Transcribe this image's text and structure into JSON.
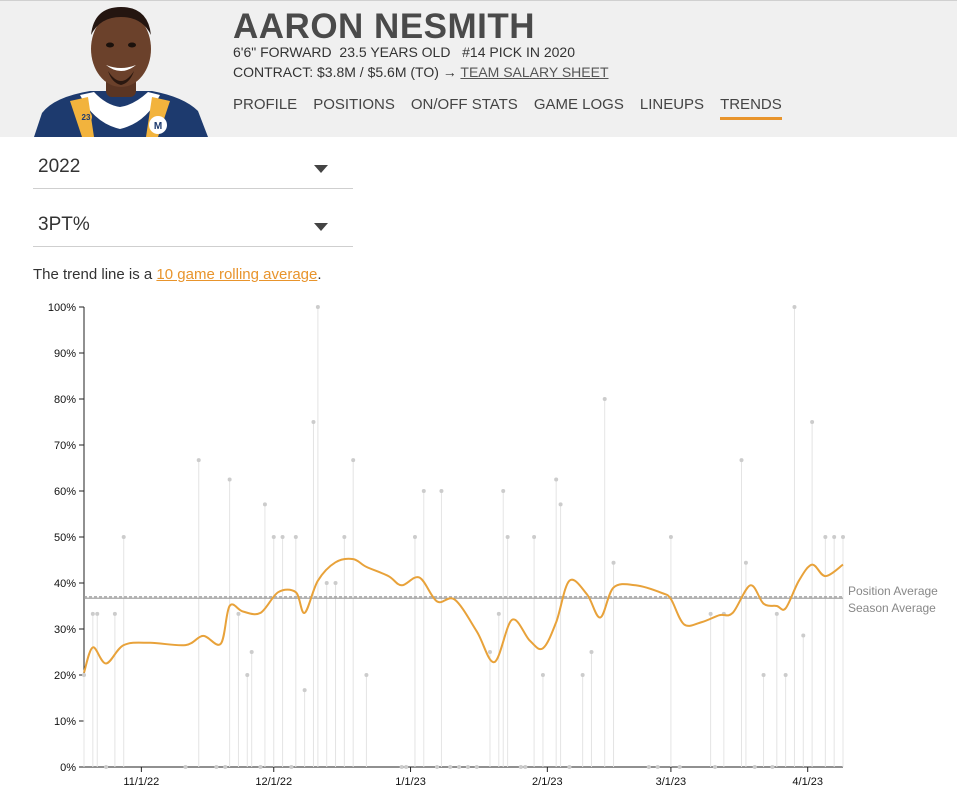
{
  "player": {
    "name": "AARON NESMITH",
    "bio": "6'6\" FORWARD  23.5 YEARS OLD   #14 PICK IN 2020",
    "contract_prefix": "CONTRACT: $3.8M / $5.6M (TO) → ",
    "contract_link": "TEAM SALARY SHEET",
    "jersey_number": "23"
  },
  "nav": {
    "items": [
      "PROFILE",
      "POSITIONS",
      "ON/OFF STATS",
      "GAME LOGS",
      "LINEUPS",
      "TRENDS"
    ],
    "active": "TRENDS"
  },
  "filters": {
    "season": "2022",
    "stat": "3PT%"
  },
  "note": {
    "prefix": "The trend line is a ",
    "link": "10 game rolling average",
    "suffix": "."
  },
  "colors": {
    "accent": "#e8942c",
    "trend": "#e8a23a",
    "points": "#cccccc",
    "reference": "#9a9a9a"
  },
  "chart_data": {
    "type": "line",
    "title": "",
    "xlabel": "",
    "ylabel": "",
    "ylim": [
      0,
      100
    ],
    "y_ticks": [
      "0%",
      "10%",
      "20%",
      "30%",
      "40%",
      "50%",
      "60%",
      "70%",
      "80%",
      "90%",
      "100%"
    ],
    "x_range": [
      "2022-10-19",
      "2023-04-09"
    ],
    "x_ticks": [
      {
        "date": "2022-11-01",
        "label": "11/1/22"
      },
      {
        "date": "2022-12-01",
        "label": "12/1/22"
      },
      {
        "date": "2023-01-01",
        "label": "1/1/23"
      },
      {
        "date": "2023-02-01",
        "label": "2/1/23"
      },
      {
        "date": "2023-03-01",
        "label": "3/1/23"
      },
      {
        "date": "2023-04-01",
        "label": "4/1/23"
      }
    ],
    "reference_lines": [
      {
        "name": "Position Average",
        "value": 37.0
      },
      {
        "name": "Season Average",
        "value": 36.7
      }
    ],
    "games": [
      {
        "date": "2022-10-19",
        "value": 20.0
      },
      {
        "date": "2022-10-21",
        "value": 33.3
      },
      {
        "date": "2022-10-22",
        "value": 33.3
      },
      {
        "date": "2022-10-24",
        "value": 0.0
      },
      {
        "date": "2022-10-26",
        "value": 33.3
      },
      {
        "date": "2022-10-28",
        "value": 50.0
      },
      {
        "date": "2022-11-11",
        "value": 0.0
      },
      {
        "date": "2022-11-14",
        "value": 66.7
      },
      {
        "date": "2022-11-18",
        "value": 0.0
      },
      {
        "date": "2022-11-20",
        "value": 0.0
      },
      {
        "date": "2022-11-21",
        "value": 62.5
      },
      {
        "date": "2022-11-23",
        "value": 33.3
      },
      {
        "date": "2022-11-25",
        "value": 20.0
      },
      {
        "date": "2022-11-26",
        "value": 25.0
      },
      {
        "date": "2022-11-28",
        "value": 0.0
      },
      {
        "date": "2022-11-29",
        "value": 57.1
      },
      {
        "date": "2022-12-01",
        "value": 50.0
      },
      {
        "date": "2022-12-03",
        "value": 50.0
      },
      {
        "date": "2022-12-05",
        "value": 0.0
      },
      {
        "date": "2022-12-06",
        "value": 50.0
      },
      {
        "date": "2022-12-08",
        "value": 16.7
      },
      {
        "date": "2022-12-10",
        "value": 75.0
      },
      {
        "date": "2022-12-11",
        "value": 100.0
      },
      {
        "date": "2022-12-13",
        "value": 40.0
      },
      {
        "date": "2022-12-15",
        "value": 40.0
      },
      {
        "date": "2022-12-17",
        "value": 50.0
      },
      {
        "date": "2022-12-19",
        "value": 66.7
      },
      {
        "date": "2022-12-22",
        "value": 20.0
      },
      {
        "date": "2022-12-30",
        "value": 0.0
      },
      {
        "date": "2022-12-31",
        "value": 0.0
      },
      {
        "date": "2023-01-02",
        "value": 50.0
      },
      {
        "date": "2023-01-04",
        "value": 60.0
      },
      {
        "date": "2023-01-07",
        "value": 0.0
      },
      {
        "date": "2023-01-08",
        "value": 60.0
      },
      {
        "date": "2023-01-10",
        "value": 0.0
      },
      {
        "date": "2023-01-12",
        "value": 0.0
      },
      {
        "date": "2023-01-14",
        "value": 0.0
      },
      {
        "date": "2023-01-16",
        "value": 0.0
      },
      {
        "date": "2023-01-19",
        "value": 25.0
      },
      {
        "date": "2023-01-21",
        "value": 33.3
      },
      {
        "date": "2023-01-22",
        "value": 60.0
      },
      {
        "date": "2023-01-23",
        "value": 50.0
      },
      {
        "date": "2023-01-26",
        "value": 0.0
      },
      {
        "date": "2023-01-27",
        "value": 0.0
      },
      {
        "date": "2023-01-29",
        "value": 50.0
      },
      {
        "date": "2023-01-31",
        "value": 20.0
      },
      {
        "date": "2023-02-03",
        "value": 62.5
      },
      {
        "date": "2023-02-04",
        "value": 57.1
      },
      {
        "date": "2023-02-06",
        "value": 0.0
      },
      {
        "date": "2023-02-09",
        "value": 20.0
      },
      {
        "date": "2023-02-11",
        "value": 25.0
      },
      {
        "date": "2023-02-14",
        "value": 80.0
      },
      {
        "date": "2023-02-16",
        "value": 44.4
      },
      {
        "date": "2023-02-24",
        "value": 0.0
      },
      {
        "date": "2023-02-26",
        "value": 0.0
      },
      {
        "date": "2023-03-01",
        "value": 50.0
      },
      {
        "date": "2023-03-03",
        "value": 0.0
      },
      {
        "date": "2023-03-10",
        "value": 33.3
      },
      {
        "date": "2023-03-11",
        "value": 0.0
      },
      {
        "date": "2023-03-13",
        "value": 33.3
      },
      {
        "date": "2023-03-17",
        "value": 66.7
      },
      {
        "date": "2023-03-18",
        "value": 44.4
      },
      {
        "date": "2023-03-20",
        "value": 0.0
      },
      {
        "date": "2023-03-22",
        "value": 20.0
      },
      {
        "date": "2023-03-24",
        "value": 0.0
      },
      {
        "date": "2023-03-25",
        "value": 33.3
      },
      {
        "date": "2023-03-27",
        "value": 20.0
      },
      {
        "date": "2023-03-29",
        "value": 100.0
      },
      {
        "date": "2023-03-31",
        "value": 28.6
      },
      {
        "date": "2023-04-02",
        "value": 75.0
      },
      {
        "date": "2023-04-05",
        "value": 50.0
      },
      {
        "date": "2023-04-07",
        "value": 50.0
      },
      {
        "date": "2023-04-09",
        "value": 50.0
      }
    ],
    "rolling_average": [
      {
        "date": "2022-10-19",
        "value": 20.5
      },
      {
        "date": "2022-10-21",
        "value": 26.0
      },
      {
        "date": "2022-10-24",
        "value": 22.5
      },
      {
        "date": "2022-10-28",
        "value": 26.5
      },
      {
        "date": "2022-11-03",
        "value": 27.0
      },
      {
        "date": "2022-11-11",
        "value": 26.5
      },
      {
        "date": "2022-11-15",
        "value": 28.5
      },
      {
        "date": "2022-11-19",
        "value": 26.8
      },
      {
        "date": "2022-11-21",
        "value": 35.0
      },
      {
        "date": "2022-11-24",
        "value": 33.8
      },
      {
        "date": "2022-11-28",
        "value": 33.5
      },
      {
        "date": "2022-12-02",
        "value": 38.0
      },
      {
        "date": "2022-12-06",
        "value": 38.0
      },
      {
        "date": "2022-12-08",
        "value": 33.5
      },
      {
        "date": "2022-12-11",
        "value": 40.5
      },
      {
        "date": "2022-12-15",
        "value": 44.5
      },
      {
        "date": "2022-12-19",
        "value": 45.2
      },
      {
        "date": "2022-12-22",
        "value": 43.5
      },
      {
        "date": "2022-12-27",
        "value": 41.5
      },
      {
        "date": "2022-12-30",
        "value": 39.5
      },
      {
        "date": "2023-01-03",
        "value": 41.2
      },
      {
        "date": "2023-01-07",
        "value": 36.0
      },
      {
        "date": "2023-01-11",
        "value": 36.4
      },
      {
        "date": "2023-01-16",
        "value": 29.5
      },
      {
        "date": "2023-01-20",
        "value": 22.8
      },
      {
        "date": "2023-01-24",
        "value": 32.0
      },
      {
        "date": "2023-01-28",
        "value": 27.5
      },
      {
        "date": "2023-01-31",
        "value": 25.8
      },
      {
        "date": "2023-02-03",
        "value": 31.5
      },
      {
        "date": "2023-02-06",
        "value": 40.5
      },
      {
        "date": "2023-02-10",
        "value": 37.5
      },
      {
        "date": "2023-02-13",
        "value": 32.5
      },
      {
        "date": "2023-02-16",
        "value": 39.0
      },
      {
        "date": "2023-02-21",
        "value": 39.5
      },
      {
        "date": "2023-02-27",
        "value": 37.8
      },
      {
        "date": "2023-03-01",
        "value": 36.5
      },
      {
        "date": "2023-03-04",
        "value": 31.0
      },
      {
        "date": "2023-03-08",
        "value": 31.5
      },
      {
        "date": "2023-03-12",
        "value": 33.0
      },
      {
        "date": "2023-03-15",
        "value": 33.5
      },
      {
        "date": "2023-03-19",
        "value": 39.5
      },
      {
        "date": "2023-03-22",
        "value": 35.5
      },
      {
        "date": "2023-03-25",
        "value": 35.0
      },
      {
        "date": "2023-03-27",
        "value": 34.5
      },
      {
        "date": "2023-03-30",
        "value": 40.5
      },
      {
        "date": "2023-04-02",
        "value": 44.0
      },
      {
        "date": "2023-04-05",
        "value": 41.5
      },
      {
        "date": "2023-04-09",
        "value": 44.0
      }
    ]
  }
}
